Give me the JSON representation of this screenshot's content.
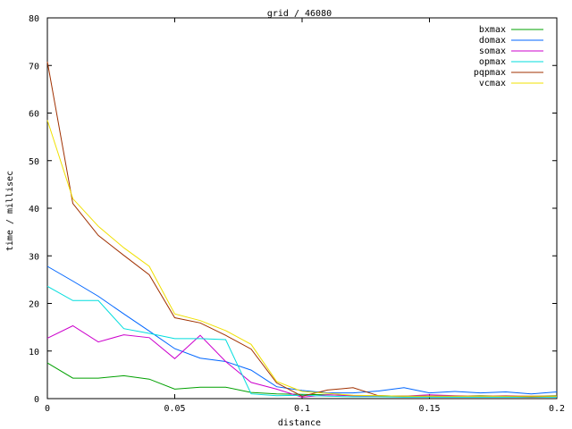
{
  "chart_data": {
    "type": "line",
    "title": "grid / 46080",
    "xlabel": "distance",
    "ylabel": "time / millisec",
    "xlim": [
      0,
      0.2
    ],
    "ylim": [
      0,
      80
    ],
    "xticks": [
      0,
      0.05,
      0.1,
      0.15,
      0.2
    ],
    "xtick_labels": [
      "0",
      "0.05",
      "0.1",
      "0.15",
      "0.2"
    ],
    "yticks": [
      0,
      10,
      20,
      30,
      40,
      50,
      60,
      70,
      80
    ],
    "ytick_labels": [
      "0",
      "10",
      "20",
      "30",
      "40",
      "50",
      "60",
      "70",
      "80"
    ],
    "grid": false,
    "legend_position": "top-right",
    "x": [
      0,
      0.01,
      0.02,
      0.03,
      0.04,
      0.05,
      0.06,
      0.07,
      0.08,
      0.09,
      0.1,
      0.11,
      0.12,
      0.13,
      0.14,
      0.15,
      0.16,
      0.17,
      0.18,
      0.19,
      0.2
    ],
    "series": [
      {
        "name": "bxmax",
        "color": "#00a000",
        "values": [
          7.5,
          4.3,
          4.3,
          4.8,
          4.1,
          2.0,
          2.4,
          2.4,
          1.3,
          1.0,
          0.9,
          0.8,
          0.6,
          0.6,
          0.5,
          0.5,
          0.5,
          0.6,
          0.5,
          0.5,
          0.6
        ]
      },
      {
        "name": "domax",
        "color": "#0066ff",
        "values": [
          27.8,
          24.7,
          21.5,
          17.8,
          14.2,
          10.5,
          8.5,
          7.8,
          6.0,
          2.5,
          1.7,
          1.2,
          1.2,
          1.6,
          2.3,
          1.2,
          1.5,
          1.2,
          1.4,
          1.0,
          1.4
        ]
      },
      {
        "name": "somax",
        "color": "#cc00cc",
        "values": [
          12.7,
          15.3,
          11.9,
          13.4,
          12.8,
          8.4,
          13.3,
          7.8,
          3.4,
          2.0,
          0.3,
          0.8,
          0.6,
          0.5,
          0.5,
          0.8,
          0.6,
          0.5,
          0.6,
          0.5,
          0.5
        ]
      },
      {
        "name": "opmax",
        "color": "#00dddd",
        "values": [
          23.6,
          20.6,
          20.6,
          14.7,
          13.7,
          12.6,
          12.6,
          12.4,
          1.0,
          0.6,
          0.7,
          0.5,
          0.4,
          0.4,
          0.3,
          0.3,
          0.3,
          0.3,
          0.3,
          0.3,
          0.3
        ]
      },
      {
        "name": "pqpmax",
        "color": "#a03000",
        "values": [
          70.8,
          41.0,
          34.3,
          30.1,
          26.0,
          17.0,
          15.9,
          13.3,
          10.4,
          3.3,
          0.5,
          1.8,
          2.3,
          0.6,
          0.5,
          0.5,
          0.5,
          0.5,
          0.5,
          0.4,
          0.5
        ]
      },
      {
        "name": "vcmax",
        "color": "#f0e000",
        "values": [
          58.5,
          42.0,
          36.2,
          31.7,
          27.8,
          17.8,
          16.4,
          14.3,
          11.4,
          3.6,
          1.5,
          1.1,
          0.7,
          0.6,
          0.5,
          0.5,
          0.5,
          0.5,
          0.5,
          0.5,
          0.5
        ]
      }
    ]
  }
}
